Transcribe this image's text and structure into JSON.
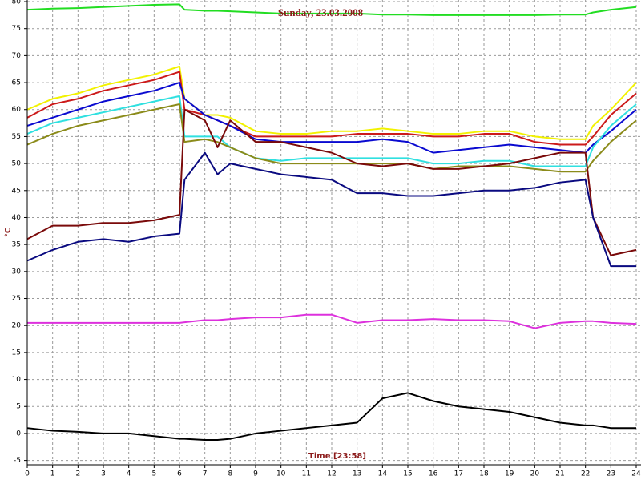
{
  "chart_data": {
    "type": "line",
    "title": "Sunday, 23.03.2008",
    "y_label": "°C",
    "x_label": "Time [23:58]",
    "xlim": [
      0,
      24
    ],
    "ylim": [
      -5.8,
      80.3
    ],
    "xticks": [
      0,
      1,
      2,
      3,
      4,
      5,
      6,
      7,
      8,
      9,
      10,
      11,
      12,
      13,
      14,
      15,
      16,
      17,
      18,
      19,
      20,
      21,
      22,
      23,
      24
    ],
    "yticks": [
      -5,
      0,
      5,
      10,
      15,
      20,
      25,
      30,
      35,
      40,
      45,
      50,
      55,
      60,
      65,
      70,
      75,
      80
    ],
    "grid": true,
    "x": [
      0,
      1,
      2,
      3,
      4,
      5,
      6,
      6.2,
      7,
      7.5,
      8,
      9,
      10,
      11,
      12,
      13,
      14,
      15,
      16,
      17,
      18,
      19,
      20,
      21,
      22,
      22.3,
      23,
      24
    ],
    "series": [
      {
        "color": "#22dd22",
        "values": [
          78.5,
          78.7,
          78.8,
          79,
          79.2,
          79.4,
          79.5,
          78.5,
          78.3,
          78.3,
          78.2,
          78,
          77.8,
          77.8,
          77.8,
          77.8,
          77.6,
          77.6,
          77.5,
          77.5,
          77.5,
          77.5,
          77.5,
          77.6,
          77.6,
          78,
          78.5,
          79
        ]
      },
      {
        "color": "#f2f200",
        "values": [
          60,
          62,
          63,
          64.5,
          65.5,
          66.5,
          68,
          62,
          59,
          59,
          58.5,
          56,
          55.5,
          55.5,
          56,
          56,
          56.5,
          56,
          55.5,
          55.5,
          56,
          56,
          55,
          54.5,
          54.5,
          57,
          60,
          65
        ]
      },
      {
        "color": "#cc1a1a",
        "values": [
          58.5,
          61,
          62,
          63.5,
          64.5,
          65.5,
          67,
          60,
          59,
          58,
          57,
          55,
          55,
          55,
          55,
          55.5,
          55.5,
          55.5,
          55,
          55,
          55.5,
          55.5,
          54,
          53.5,
          53.5,
          55,
          59,
          63
        ]
      },
      {
        "color": "#0a0ad0",
        "values": [
          57,
          58.5,
          60,
          61.5,
          62.5,
          63.5,
          65,
          62,
          59,
          58,
          57,
          54.5,
          54,
          54,
          54,
          54,
          54.5,
          54,
          52,
          52.5,
          53,
          53.5,
          53,
          52.5,
          52,
          53.5,
          56,
          60
        ]
      },
      {
        "color": "#30e0e0",
        "values": [
          55.5,
          57.5,
          58.5,
          59.5,
          60.5,
          61.5,
          62.5,
          55,
          55,
          55,
          53,
          51,
          50.5,
          51,
          51,
          51,
          51,
          51,
          50,
          50,
          50.5,
          50.5,
          49.5,
          49.5,
          49.5,
          53,
          57,
          61
        ]
      },
      {
        "color": "#8b8b1a",
        "values": [
          53.5,
          55.5,
          57,
          58,
          59,
          60,
          61,
          54,
          54.5,
          54,
          53,
          51,
          50,
          50,
          50,
          50,
          50,
          50,
          49,
          49.5,
          49.5,
          49.5,
          49,
          48.5,
          48.5,
          50.5,
          54,
          58
        ]
      },
      {
        "color": "#7a0a0a",
        "values": [
          36,
          38.5,
          38.5,
          39,
          39,
          39.5,
          40.5,
          60,
          58,
          53,
          58,
          54,
          54,
          53,
          52,
          50,
          49.5,
          50,
          49,
          49,
          49.5,
          50,
          51,
          52,
          52,
          40,
          33,
          34
        ]
      },
      {
        "color": "#0a0a80",
        "values": [
          32,
          34,
          35.5,
          36,
          35.5,
          36.5,
          37,
          47,
          52,
          48,
          50,
          49,
          48,
          47.5,
          47,
          44.5,
          44.5,
          44,
          44,
          44.5,
          45,
          45,
          45.5,
          46.5,
          47,
          40,
          31,
          31
        ]
      },
      {
        "color": "#dd30dd",
        "values": [
          20.5,
          20.5,
          20.5,
          20.5,
          20.5,
          20.5,
          20.5,
          20.6,
          21,
          21,
          21.2,
          21.5,
          21.5,
          22,
          22,
          20.5,
          21,
          21,
          21.2,
          21,
          21,
          20.8,
          19.5,
          20.5,
          20.8,
          20.8,
          20.5,
          20.3
        ]
      },
      {
        "color": "#000000",
        "values": [
          1,
          0.5,
          0.3,
          0,
          0,
          -0.5,
          -1,
          -1,
          -1.2,
          -1.2,
          -1,
          0,
          0.5,
          1,
          1.5,
          2,
          6.5,
          7.5,
          6,
          5,
          4.5,
          4,
          3,
          2,
          1.5,
          1.5,
          1,
          1
        ]
      }
    ]
  }
}
